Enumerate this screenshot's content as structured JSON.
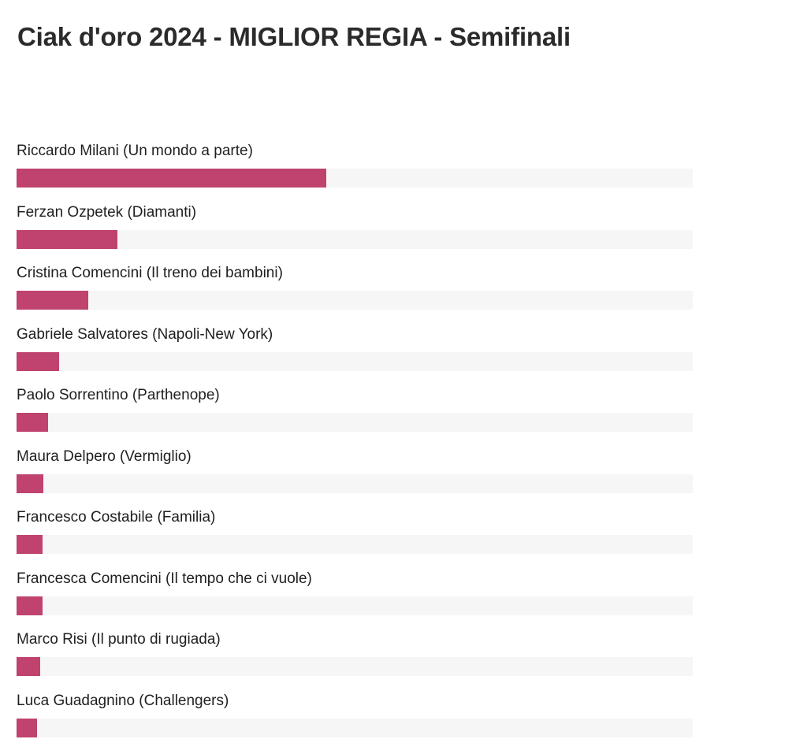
{
  "title": "Ciak d'oro 2024 - MIGLIOR REGIA - Semifinali",
  "colors": {
    "bar": "#bf426f",
    "track": "#f6f6f6",
    "text": "#1f1f1f"
  },
  "chart_data": {
    "type": "bar",
    "orientation": "horizontal",
    "title": "Ciak d'oro 2024 - MIGLIOR REGIA - Semifinali",
    "value_unit": "percent",
    "xlim": [
      0,
      100
    ],
    "grid": false,
    "legend": "none",
    "categories": [
      "Riccardo Milani (Un mondo a parte)",
      "Ferzan Ozpetek (Diamanti)",
      "Cristina Comencini (Il treno dei bambini)",
      "Gabriele Salvatores (Napoli-New York)",
      "Paolo Sorrentino (Parthenope)",
      "Maura Delpero (Vermiglio)",
      "Francesco Costabile (Familia)",
      "Francesca Comencini (Il tempo che ci vuole)",
      "Marco Risi (Il punto di rugiada)",
      "Luca Guadagnino (Challengers)"
    ],
    "values": [
      45.8,
      14.9,
      10.6,
      6.3,
      4.7,
      4.0,
      3.9,
      3.8,
      3.5,
      3.0
    ]
  }
}
